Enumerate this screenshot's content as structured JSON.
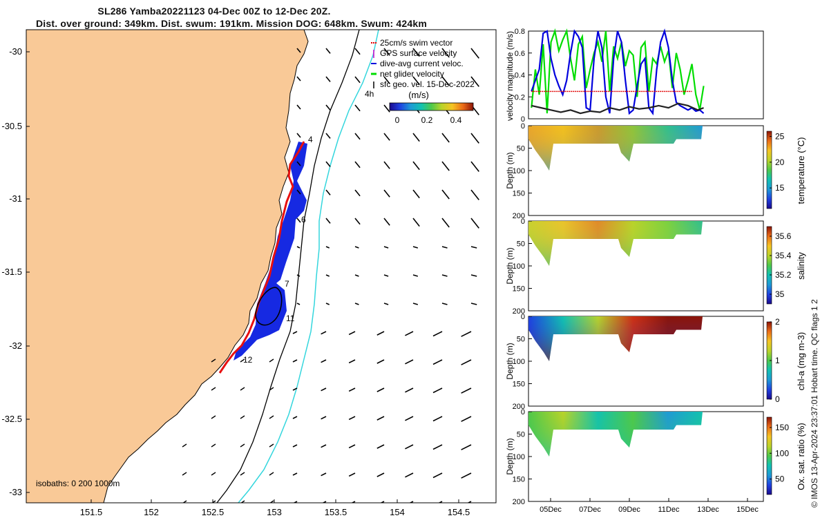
{
  "title": {
    "line1": "SL286 Yamba20221123 04-Dec 00Z to 12-Dec 20Z.",
    "line2": "Dist. over ground: 349km. Dist. swum: 191km. Mission DOG: 648km. Swum: 424km"
  },
  "map": {
    "lat_ticks": [
      "-30",
      "-30.5",
      "-31",
      "-31.5",
      "-32",
      "-32.5",
      "-33"
    ],
    "lon_ticks": [
      "151.5",
      "152",
      "152.5",
      "153",
      "153.5",
      "154",
      "154.5"
    ],
    "day_labels": [
      "4",
      "6",
      "7",
      "11",
      "12"
    ],
    "isobath_label": "isobaths: 0   200   1000m",
    "isobath_tag": "4h",
    "legend": [
      {
        "label": "25cm/s swim vector",
        "color": "#e00000"
      },
      {
        "label": "GPS surface velocity",
        "color": "#cc00cc"
      },
      {
        "label": "dive-avg current veloc.",
        "color": "#0000dd"
      },
      {
        "label": "net glider velocity",
        "color": "#00dd00"
      },
      {
        "label": "sfc geo. vel. 15-Dec-2022",
        "color": "#000000"
      }
    ],
    "colorbar": {
      "label": "(m/s)",
      "ticks": [
        "0",
        "0.2",
        "0.4"
      ]
    },
    "land_color": "#f9c997",
    "coast_color": "#000000",
    "isobath_200_color": "#000000",
    "isobath_1000_color": "#33d6dd"
  },
  "stamp": "© IMOS 13-Apr-2024 23:37:01 Hobart time. QC flags 1  2",
  "chart_data": [
    {
      "type": "line",
      "title": "",
      "xlabel": "",
      "ylabel": "velocity magnitude (m/s)",
      "ylim": [
        0,
        0.8
      ],
      "yticks": [
        "0",
        "0.2",
        "0.4",
        "0.6",
        "0.8"
      ],
      "x_unit": "days since 04-Dec 00Z",
      "series": [
        {
          "name": "net glider velocity",
          "color": "#00dd00",
          "x": [
            0,
            0.2,
            0.4,
            0.6,
            0.8,
            1.0,
            1.2,
            1.4,
            1.6,
            1.8,
            2.0,
            2.2,
            2.4,
            2.6,
            2.8,
            3.0,
            3.2,
            3.4,
            3.6,
            3.8,
            4.0,
            4.2,
            4.4,
            4.6,
            4.8,
            5.0,
            5.2,
            5.4,
            5.6,
            5.8,
            6.0,
            6.2,
            6.4,
            6.6,
            6.8,
            7.0,
            7.2,
            7.4,
            7.6,
            7.8,
            8.0,
            8.2,
            8.4,
            8.6,
            8.8
          ],
          "values": [
            0.1,
            0.45,
            0.22,
            0.68,
            0.05,
            0.7,
            0.82,
            0.62,
            0.72,
            0.8,
            0.55,
            0.35,
            0.68,
            0.75,
            0.28,
            0.45,
            0.6,
            0.7,
            0.52,
            0.82,
            0.25,
            0.66,
            0.55,
            0.7,
            0.48,
            0.62,
            0.58,
            0.2,
            0.65,
            0.7,
            0.25,
            0.55,
            0.5,
            0.66,
            0.52,
            0.62,
            0.28,
            0.6,
            0.45,
            0.22,
            0.35,
            0.5,
            0.22,
            0.08,
            0.3
          ]
        },
        {
          "name": "dive-avg current veloc.",
          "color": "#0000dd",
          "x": [
            0,
            0.2,
            0.4,
            0.6,
            0.8,
            1.0,
            1.2,
            1.4,
            1.6,
            1.8,
            2.0,
            2.2,
            2.4,
            2.6,
            2.8,
            3.0,
            3.2,
            3.4,
            3.6,
            3.8,
            4.0,
            4.2,
            4.4,
            4.6,
            4.8,
            5.0,
            5.2,
            5.4,
            5.6,
            5.8,
            6.0,
            6.2,
            6.4,
            6.6,
            6.8,
            7.0,
            7.2,
            7.4,
            7.6,
            7.8,
            8.0,
            8.2,
            8.4,
            8.6,
            8.8
          ],
          "values": [
            0.25,
            0.35,
            0.45,
            0.78,
            0.8,
            0.55,
            0.4,
            0.3,
            0.22,
            0.35,
            0.6,
            0.8,
            0.75,
            0.65,
            0.1,
            0.08,
            0.55,
            0.8,
            0.65,
            0.2,
            0.05,
            0.55,
            0.8,
            0.7,
            0.35,
            0.05,
            0.08,
            0.3,
            0.5,
            0.55,
            0.1,
            0.05,
            0.45,
            0.7,
            0.8,
            0.65,
            0.35,
            0.15,
            0.12,
            0.1,
            0.08,
            0.1,
            0.07,
            0.08,
            0.05
          ]
        },
        {
          "name": "sfc geo. vel.",
          "color": "#222222",
          "x": [
            0,
            0.5,
            1.0,
            1.5,
            2.0,
            2.5,
            3.0,
            3.5,
            4.0,
            4.5,
            5.0,
            5.5,
            6.0,
            6.5,
            7.0,
            7.5,
            8.0,
            8.5,
            8.8
          ],
          "values": [
            0.12,
            0.1,
            0.08,
            0.06,
            0.08,
            0.05,
            0.07,
            0.06,
            0.1,
            0.08,
            0.11,
            0.09,
            0.1,
            0.12,
            0.1,
            0.14,
            0.12,
            0.08,
            0.1
          ]
        },
        {
          "name": "25cm/s swim vector",
          "color": "#e00000",
          "x": [
            0,
            8.2
          ],
          "values": [
            0.25,
            0.25
          ]
        }
      ]
    },
    {
      "type": "heatmap",
      "ylabel": "Depth (m)",
      "clabel": "temperature (°C)",
      "yticks": [
        "0",
        "50",
        "100",
        "150",
        "200"
      ],
      "cticks": [
        "15",
        "20",
        "25"
      ],
      "clim": [
        11,
        26
      ]
    },
    {
      "type": "heatmap",
      "ylabel": "Depth (m)",
      "clabel": "salinity",
      "yticks": [
        "0",
        "50",
        "100",
        "150",
        "200"
      ],
      "cticks": [
        "35",
        "35.2",
        "35.4",
        "35.6"
      ],
      "clim": [
        34.9,
        35.7
      ]
    },
    {
      "type": "heatmap",
      "ylabel": "Depth (m)",
      "clabel": "chl-a (mg m-3)",
      "yticks": [
        "0",
        "50",
        "100",
        "150",
        "200"
      ],
      "cticks": [
        "0",
        "1",
        "2"
      ],
      "clim": [
        0,
        2
      ]
    },
    {
      "type": "heatmap",
      "ylabel": "Depth (m)",
      "clabel": "Ox. sat. ratio (%)",
      "yticks": [
        "0",
        "50",
        "100",
        "150",
        "200"
      ],
      "cticks": [
        "50",
        "100",
        "150"
      ],
      "clim": [
        20,
        170
      ]
    }
  ],
  "time_axis": {
    "ticks": [
      "05Dec",
      "07Dec",
      "09Dec",
      "11Dec",
      "13Dec",
      "15Dec"
    ]
  }
}
